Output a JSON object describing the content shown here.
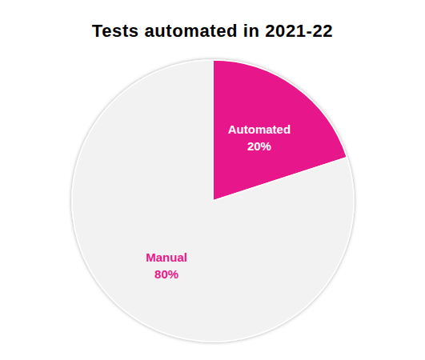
{
  "chart_data": {
    "type": "pie",
    "title": "Tests automated in 2021-22",
    "categories": [
      "Automated",
      "Manual"
    ],
    "values": [
      20,
      80
    ],
    "value_labels": [
      "20%",
      "80%"
    ],
    "colors": [
      "#e8198b",
      "#f2f2f2"
    ],
    "data_labels": true
  }
}
